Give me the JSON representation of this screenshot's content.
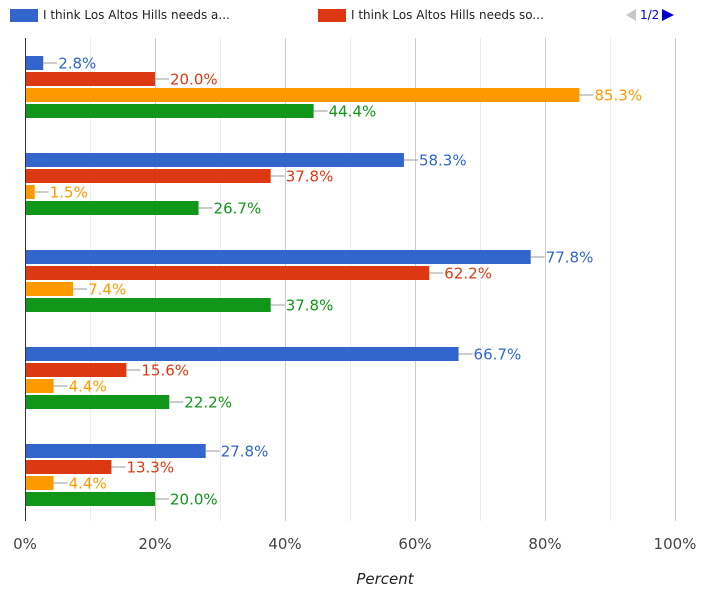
{
  "legend": {
    "items": [
      {
        "label": "I think Los Altos Hills needs a...",
        "color": "#3366cc"
      },
      {
        "label": "I think Los Altos Hills needs so...",
        "color": "#dc3912"
      }
    ],
    "pager": {
      "text": "1/2"
    }
  },
  "chart_data": {
    "type": "bar",
    "orientation": "horizontal",
    "categories": [
      "",
      "",
      "",
      "",
      ""
    ],
    "series": [
      {
        "name": "I think Los Altos Hills needs a...",
        "color": "#3366cc",
        "values": [
          2.8,
          58.3,
          77.8,
          66.7,
          27.8
        ]
      },
      {
        "name": "I think Los Altos Hills needs so...",
        "color": "#dc3912",
        "values": [
          20.0,
          37.8,
          62.2,
          15.6,
          13.3
        ]
      },
      {
        "color": "#ff9900",
        "values": [
          85.3,
          1.5,
          7.4,
          4.4,
          4.4
        ]
      },
      {
        "color": "#109618",
        "values": [
          44.4,
          26.7,
          37.8,
          22.2,
          20.0
        ]
      }
    ],
    "xlim": [
      0,
      100
    ],
    "xticks": [
      "0%",
      "20%",
      "40%",
      "60%",
      "80%",
      "100%"
    ],
    "xlabel": "Percent",
    "ylabel": "",
    "grid": true,
    "legend_position": "top"
  }
}
